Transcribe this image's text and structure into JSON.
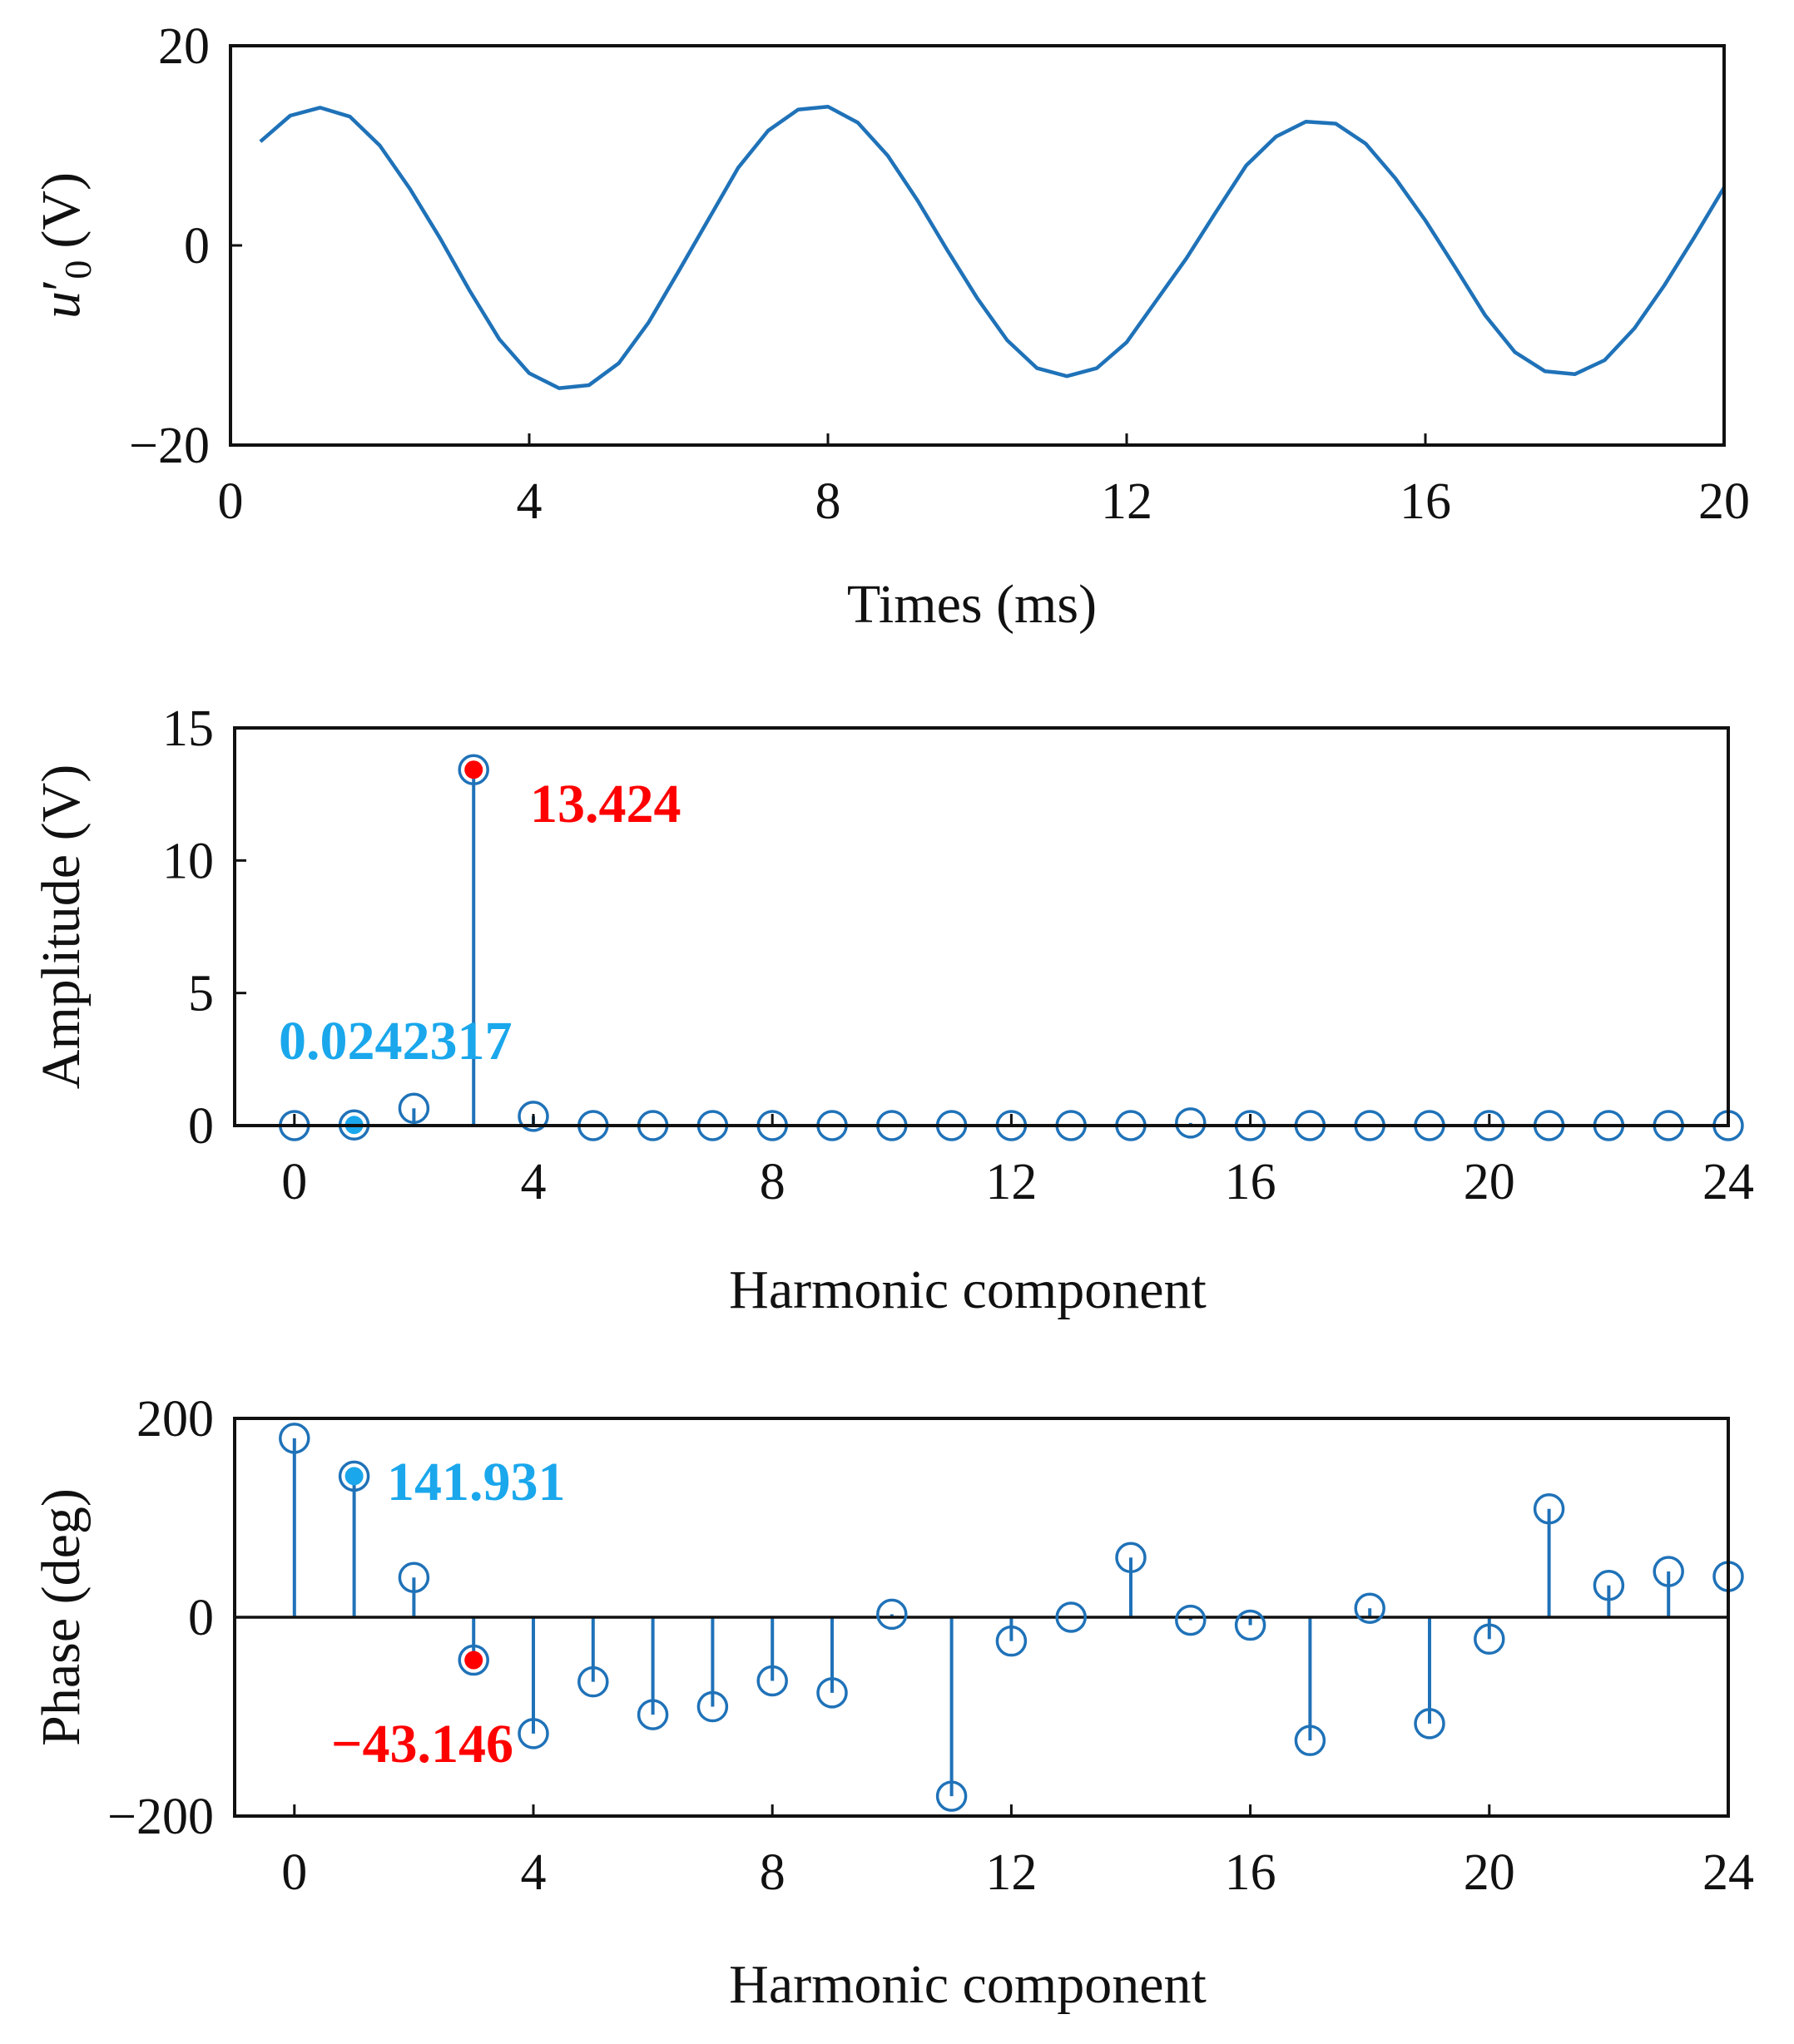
{
  "colors": {
    "series": "#1f72b8",
    "highlight_cyan": "#1aa7ec",
    "highlight_red": "#ff0000",
    "axis": "#111111"
  },
  "chart_data": [
    {
      "type": "line",
      "title": "",
      "ylabel_var": "u",
      "ylabel_prime": "′",
      "ylabel_sub": "0",
      "ylabel_unit": "(V)",
      "xlabel": "Times (ms)",
      "xlim": [
        0,
        20
      ],
      "ylim": [
        -20,
        20
      ],
      "xticks": [
        0,
        4,
        8,
        12,
        16,
        20
      ],
      "xtick_labels": [
        "0",
        "4",
        "8",
        "12",
        "16",
        "20"
      ],
      "yticks": [
        -20,
        0,
        20
      ],
      "ytick_labels": [
        "−20",
        "0",
        "20"
      ],
      "series": [
        {
          "name": "u0'",
          "x": [
            0.4,
            0.8,
            1.2,
            1.6,
            2.0,
            2.4,
            2.8,
            3.2,
            3.6,
            4.0,
            4.4,
            4.8,
            5.2,
            5.6,
            6.0,
            6.4,
            6.8,
            7.2,
            7.6,
            8.0,
            8.4,
            8.8,
            9.2,
            9.6,
            10.0,
            10.4,
            10.8,
            11.2,
            11.6,
            12.0,
            12.4,
            12.8,
            13.2,
            13.6,
            14.0,
            14.4,
            14.8,
            15.2,
            15.6,
            16.0,
            16.4,
            16.8,
            17.2,
            17.6,
            18.0,
            18.4,
            18.8,
            19.2,
            19.6,
            20.0
          ],
          "y": [
            10.4,
            13.0,
            13.8,
            12.9,
            10.0,
            5.7,
            0.8,
            -4.5,
            -9.4,
            -12.8,
            -14.3,
            -14.0,
            -11.8,
            -7.7,
            -2.6,
            2.6,
            7.8,
            11.5,
            13.6,
            13.9,
            12.3,
            9.0,
            4.5,
            -0.5,
            -5.3,
            -9.5,
            -12.3,
            -13.1,
            -12.3,
            -9.7,
            -5.5,
            -1.3,
            3.4,
            8.0,
            10.9,
            12.4,
            12.2,
            10.2,
            6.7,
            2.5,
            -2.2,
            -7.0,
            -10.7,
            -12.6,
            -12.9,
            -11.5,
            -8.3,
            -4.0,
            0.8,
            5.8
          ]
        }
      ]
    },
    {
      "type": "stem",
      "title": "",
      "ylabel": "Amplitude (V)",
      "xlabel": "Harmonic component",
      "xlim": [
        -1,
        24
      ],
      "ylim": [
        0,
        15
      ],
      "xticks": [
        0,
        4,
        8,
        12,
        16,
        20,
        24
      ],
      "xtick_labels": [
        "0",
        "4",
        "8",
        "12",
        "16",
        "20",
        "24"
      ],
      "yticks": [
        0,
        5,
        10,
        15
      ],
      "ytick_labels": [
        "0",
        "5",
        "10",
        "15"
      ],
      "x": [
        0,
        1,
        2,
        3,
        4,
        5,
        6,
        7,
        8,
        9,
        10,
        11,
        12,
        13,
        14,
        15,
        16,
        17,
        18,
        19,
        20,
        21,
        22,
        23,
        24
      ],
      "values": [
        0.0,
        0.0242317,
        0.65,
        13.424,
        0.35,
        0.0,
        0.0,
        0.0,
        0.0,
        0.0,
        0.0,
        0.0,
        0.0,
        0.0,
        0.0,
        0.1,
        0.0,
        0.0,
        0.0,
        0.0,
        0.0,
        0.0,
        0.0,
        0.0,
        0.0
      ],
      "annotations": [
        {
          "index": 1,
          "text": "0.0242317",
          "color": "cyan"
        },
        {
          "index": 3,
          "text": "13.424",
          "color": "red"
        }
      ]
    },
    {
      "type": "stem",
      "title": "",
      "ylabel": "Phase (deg)",
      "xlabel": "Harmonic component",
      "xlim": [
        -1,
        24
      ],
      "ylim": [
        -200,
        200
      ],
      "xticks": [
        0,
        4,
        8,
        12,
        16,
        20,
        24
      ],
      "xtick_labels": [
        "0",
        "4",
        "8",
        "12",
        "16",
        "20",
        "24"
      ],
      "yticks": [
        -200,
        0,
        200
      ],
      "ytick_labels": [
        "−200",
        "0",
        "200"
      ],
      "x": [
        0,
        1,
        2,
        3,
        4,
        5,
        6,
        7,
        8,
        9,
        10,
        11,
        12,
        13,
        14,
        15,
        16,
        17,
        18,
        19,
        20,
        21,
        22,
        23,
        24
      ],
      "values": [
        180,
        141.931,
        40,
        -43.146,
        -117,
        -65,
        -98,
        -90,
        -64,
        -76,
        3,
        -180,
        -24,
        0,
        60,
        -3,
        -8,
        -124,
        9,
        -107,
        -22,
        109,
        32,
        46,
        41
      ],
      "annotations": [
        {
          "index": 1,
          "text": "141.931",
          "color": "cyan"
        },
        {
          "index": 3,
          "text": "−43.146",
          "color": "red"
        }
      ]
    }
  ]
}
